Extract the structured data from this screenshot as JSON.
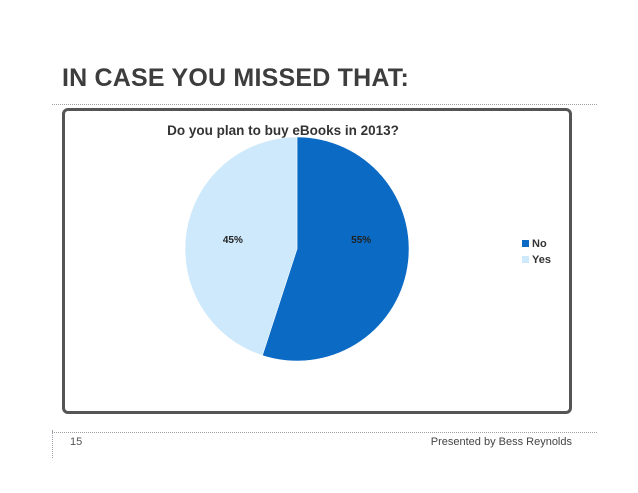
{
  "slide": {
    "title": "IN CASE YOU MISSED THAT:",
    "page_number": "15",
    "footer": "Presented by Bess Reynolds"
  },
  "colors": {
    "no": "#0a6ac4",
    "yes": "#cde9fb",
    "frame": "#555555"
  },
  "chart_data": {
    "type": "pie",
    "title": "Do you plan to buy eBooks in 2013?",
    "slices": [
      {
        "label": "No",
        "value": 55,
        "data_label": "55%"
      },
      {
        "label": "Yes",
        "value": 45,
        "data_label": "45%"
      }
    ],
    "legend_position": "right"
  }
}
